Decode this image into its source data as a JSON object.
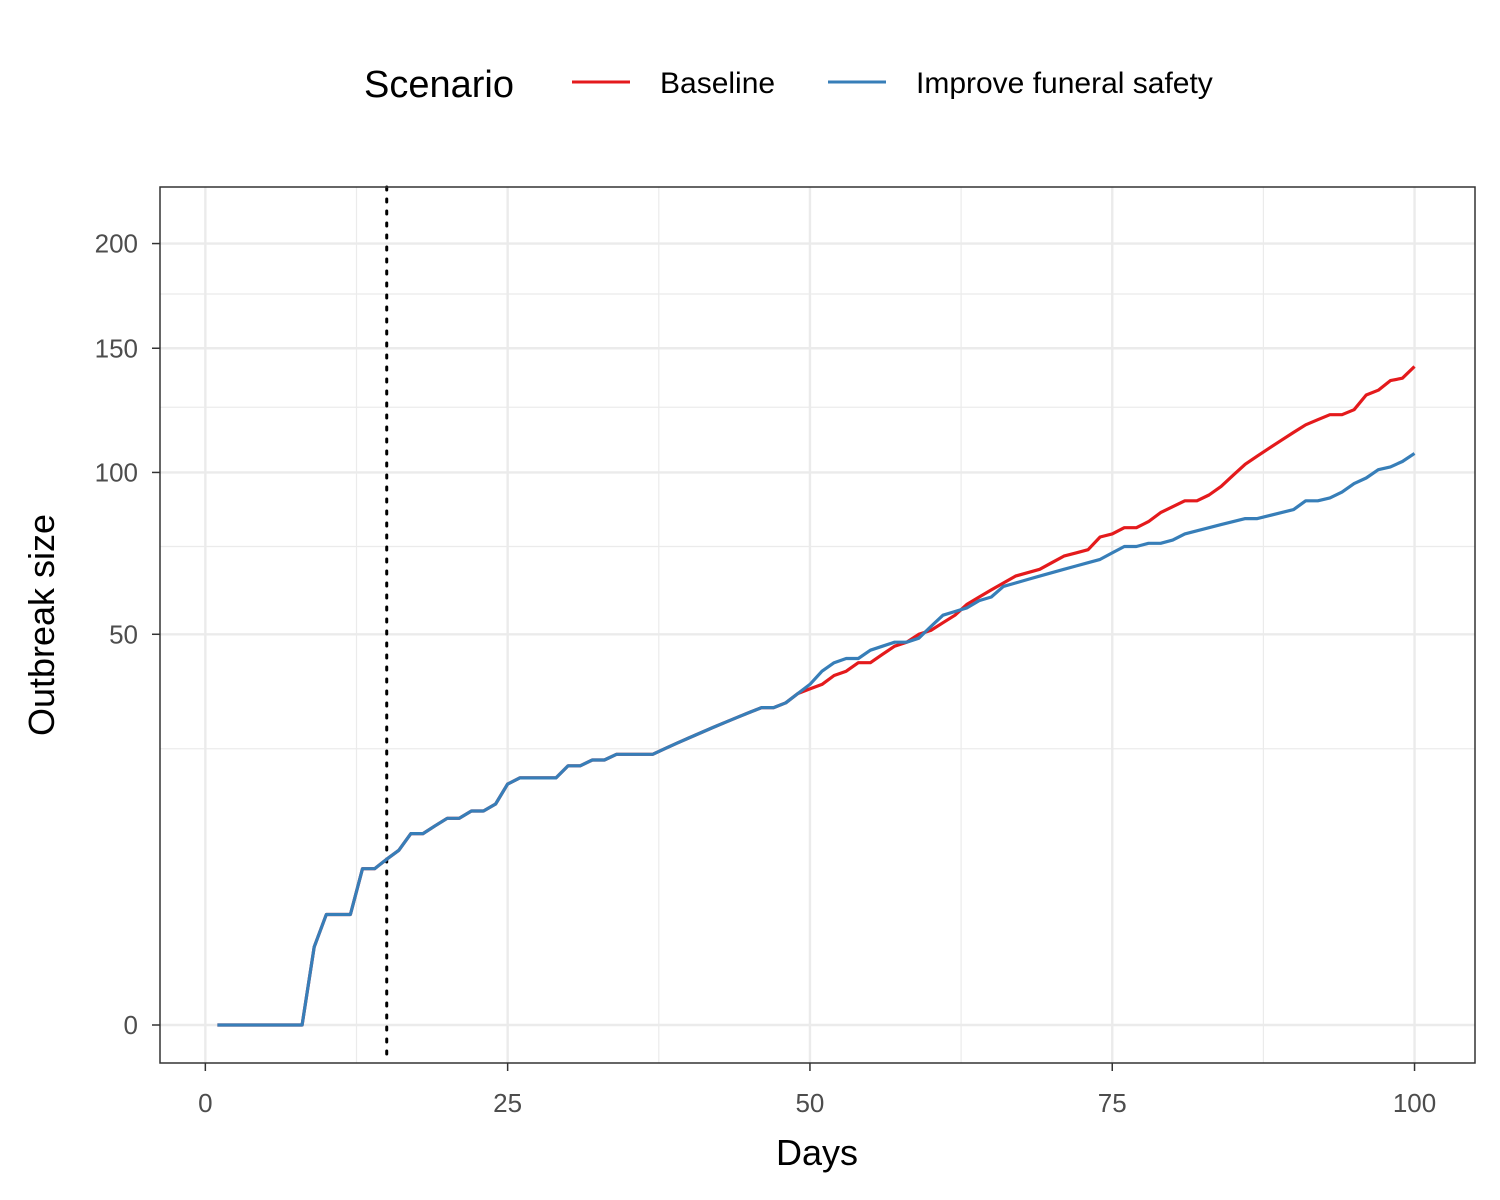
{
  "chart_data": {
    "type": "line",
    "xlabel": "Days",
    "ylabel": "Outbreak size",
    "xlim": [
      -3.75,
      105
    ],
    "x_ticks": [
      0,
      25,
      50,
      75,
      100
    ],
    "y_scale": "sqrt",
    "ylim": [
      0,
      230
    ],
    "y_ticks": [
      0,
      50,
      100,
      150,
      200
    ],
    "grid": true,
    "legend": {
      "title": "Scenario",
      "position": "top"
    },
    "reference_line": {
      "x": 15,
      "style": "dotted"
    },
    "x": [
      1,
      2,
      3,
      4,
      5,
      6,
      7,
      8,
      9,
      10,
      11,
      12,
      13,
      14,
      15,
      16,
      17,
      18,
      19,
      20,
      21,
      22,
      23,
      24,
      25,
      26,
      27,
      28,
      29,
      30,
      31,
      32,
      33,
      34,
      35,
      36,
      37,
      38,
      39,
      40,
      41,
      42,
      43,
      44,
      45,
      46,
      47,
      48,
      49,
      50,
      51,
      52,
      53,
      54,
      55,
      56,
      57,
      58,
      59,
      60,
      61,
      62,
      63,
      64,
      65,
      66,
      67,
      68,
      69,
      70,
      71,
      72,
      73,
      74,
      75,
      76,
      77,
      78,
      79,
      80,
      81,
      82,
      83,
      84,
      85,
      86,
      87,
      88,
      89,
      90,
      91,
      92,
      93,
      94,
      95,
      96,
      97,
      98,
      99,
      100
    ],
    "series": [
      {
        "name": "Baseline",
        "color": "#e41a1c",
        "values": [
          0,
          0,
          0,
          0,
          0,
          0,
          0,
          0,
          2,
          4,
          4,
          4,
          8,
          8,
          9,
          10,
          12,
          12,
          13,
          14,
          14,
          15,
          15,
          16,
          19,
          20,
          20,
          20,
          20,
          22,
          22,
          23,
          23,
          24,
          24,
          24,
          24,
          25,
          26,
          27,
          28,
          29,
          30,
          31,
          32,
          33,
          33,
          34,
          36,
          37,
          38,
          40,
          41,
          43,
          43,
          45,
          47,
          48,
          50,
          51,
          53,
          55,
          58,
          60,
          62,
          64,
          66,
          67,
          68,
          70,
          72,
          73,
          74,
          78,
          79,
          81,
          81,
          83,
          86,
          88,
          90,
          90,
          92,
          95,
          99,
          103,
          106,
          109,
          112,
          115,
          118,
          120,
          122,
          122,
          124,
          130,
          132,
          136,
          137,
          142
        ]
      },
      {
        "name": "Improve funeral safety",
        "color": "#377eb8",
        "values": [
          0,
          0,
          0,
          0,
          0,
          0,
          0,
          0,
          2,
          4,
          4,
          4,
          8,
          8,
          9,
          10,
          12,
          12,
          13,
          14,
          14,
          15,
          15,
          16,
          19,
          20,
          20,
          20,
          20,
          22,
          22,
          23,
          23,
          24,
          24,
          24,
          24,
          25,
          26,
          27,
          28,
          29,
          30,
          31,
          32,
          33,
          33,
          34,
          36,
          38,
          41,
          43,
          44,
          44,
          46,
          47,
          48,
          48,
          49,
          52,
          55,
          56,
          57,
          59,
          60,
          63,
          64,
          65,
          66,
          67,
          68,
          69,
          70,
          71,
          73,
          75,
          75,
          76,
          76,
          77,
          79,
          80,
          81,
          82,
          83,
          84,
          84,
          85,
          86,
          87,
          90,
          90,
          91,
          93,
          96,
          98,
          101,
          102,
          104,
          107
        ]
      }
    ]
  }
}
